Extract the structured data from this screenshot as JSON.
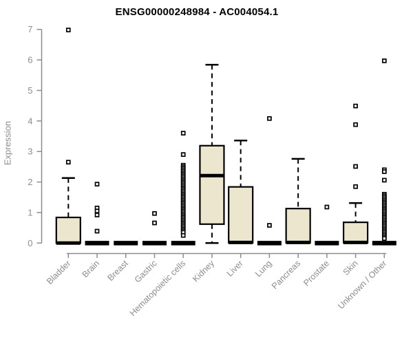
{
  "chart_data": {
    "type": "boxplot",
    "title": "ENSG00000248984 - AC004054.1",
    "ylabel": "Expression",
    "xlabel": "",
    "ylim": [
      0,
      7
    ],
    "yticks": [
      0,
      1,
      2,
      3,
      4,
      5,
      6,
      7
    ],
    "grid": false,
    "legend": "none",
    "colors": {
      "box_fill": "#ebe6cd",
      "box_stroke": "#000000",
      "median": "#000000",
      "outlier_fill": "#ffffff",
      "outlier_stroke": "#000000",
      "axis": "#8c8c8c",
      "tick_label": "#8c8c8c",
      "title": "#000000",
      "background": "#ffffff"
    },
    "categories": [
      "Bladder",
      "Brain",
      "Breast",
      "Gastric",
      "Hematopoietic cells",
      "Kidney",
      "Liver",
      "Lung",
      "Pancreas",
      "Prostate",
      "Skin",
      "Unknown / Other"
    ],
    "series": [
      {
        "category": "Bladder",
        "q1": 0,
        "median": 0,
        "q3": 0.84,
        "whisker_low": 0,
        "whisker_high": 2.13,
        "outliers": [
          2.65,
          6.98
        ]
      },
      {
        "category": "Brain",
        "q1": 0,
        "median": 0,
        "q3": 0,
        "whisker_low": 0,
        "whisker_high": 0,
        "outliers": [
          1.93,
          1.15,
          1.05,
          0.92,
          0.39
        ]
      },
      {
        "category": "Breast",
        "q1": 0,
        "median": 0,
        "q3": 0,
        "whisker_low": 0,
        "whisker_high": 0,
        "outliers": []
      },
      {
        "category": "Gastric",
        "q1": 0,
        "median": 0,
        "q3": 0,
        "whisker_low": 0,
        "whisker_high": 0,
        "outliers": [
          0.97,
          0.66
        ]
      },
      {
        "category": "Hematopoietic cells",
        "q1": 0,
        "median": 0,
        "q3": 0,
        "whisker_low": 0,
        "whisker_high": 0,
        "outliers": [
          3.6,
          2.9,
          2.55,
          2.5,
          2.45,
          2.4,
          2.35,
          2.3,
          2.25,
          2.2,
          2.15,
          2.1,
          2.05,
          2.0,
          1.95,
          1.9,
          1.85,
          1.8,
          1.75,
          1.7,
          1.65,
          1.6,
          1.55,
          1.5,
          1.45,
          1.4,
          1.35,
          1.3,
          1.25,
          1.2,
          1.15,
          1.1,
          1.05,
          1.0,
          0.95,
          0.9,
          0.85,
          0.8,
          0.75,
          0.7,
          0.65,
          0.6,
          0.55,
          0.5,
          0.45,
          0.4,
          0.35,
          0.25
        ]
      },
      {
        "category": "Kidney",
        "q1": 0.62,
        "median": 2.21,
        "q3": 3.19,
        "whisker_low": 0,
        "whisker_high": 5.84,
        "outliers": []
      },
      {
        "category": "Liver",
        "q1": 0.01,
        "median": 0.02,
        "q3": 1.84,
        "whisker_low": 0.01,
        "whisker_high": 3.36,
        "outliers": []
      },
      {
        "category": "Lung",
        "q1": 0,
        "median": 0,
        "q3": 0,
        "whisker_low": 0,
        "whisker_high": 0,
        "outliers": [
          4.08,
          0.58
        ]
      },
      {
        "category": "Pancreas",
        "q1": 0.01,
        "median": 0.02,
        "q3": 1.13,
        "whisker_low": 0.01,
        "whisker_high": 2.76,
        "outliers": []
      },
      {
        "category": "Prostate",
        "q1": 0,
        "median": 0,
        "q3": 0,
        "whisker_low": 0,
        "whisker_high": 0,
        "outliers": [
          1.18
        ]
      },
      {
        "category": "Skin",
        "q1": 0.01,
        "median": 0.02,
        "q3": 0.68,
        "whisker_low": 0.01,
        "whisker_high": 1.31,
        "outliers": [
          4.49,
          3.88,
          2.51,
          1.85
        ]
      },
      {
        "category": "Unknown / Other",
        "q1": 0,
        "median": 0,
        "q3": 0,
        "whisker_low": 0,
        "whisker_high": 0,
        "outliers": [
          5.97,
          2.4,
          2.34,
          2.06,
          1.6,
          1.55,
          1.5,
          1.45,
          1.4,
          1.35,
          1.3,
          1.25,
          1.2,
          1.15,
          1.1,
          1.05,
          1.0,
          0.95,
          0.9,
          0.85,
          0.8,
          0.75,
          0.7,
          0.65,
          0.6,
          0.55,
          0.5,
          0.45,
          0.4,
          0.35,
          0.3,
          0.25,
          0.2,
          0.15
        ]
      }
    ]
  }
}
